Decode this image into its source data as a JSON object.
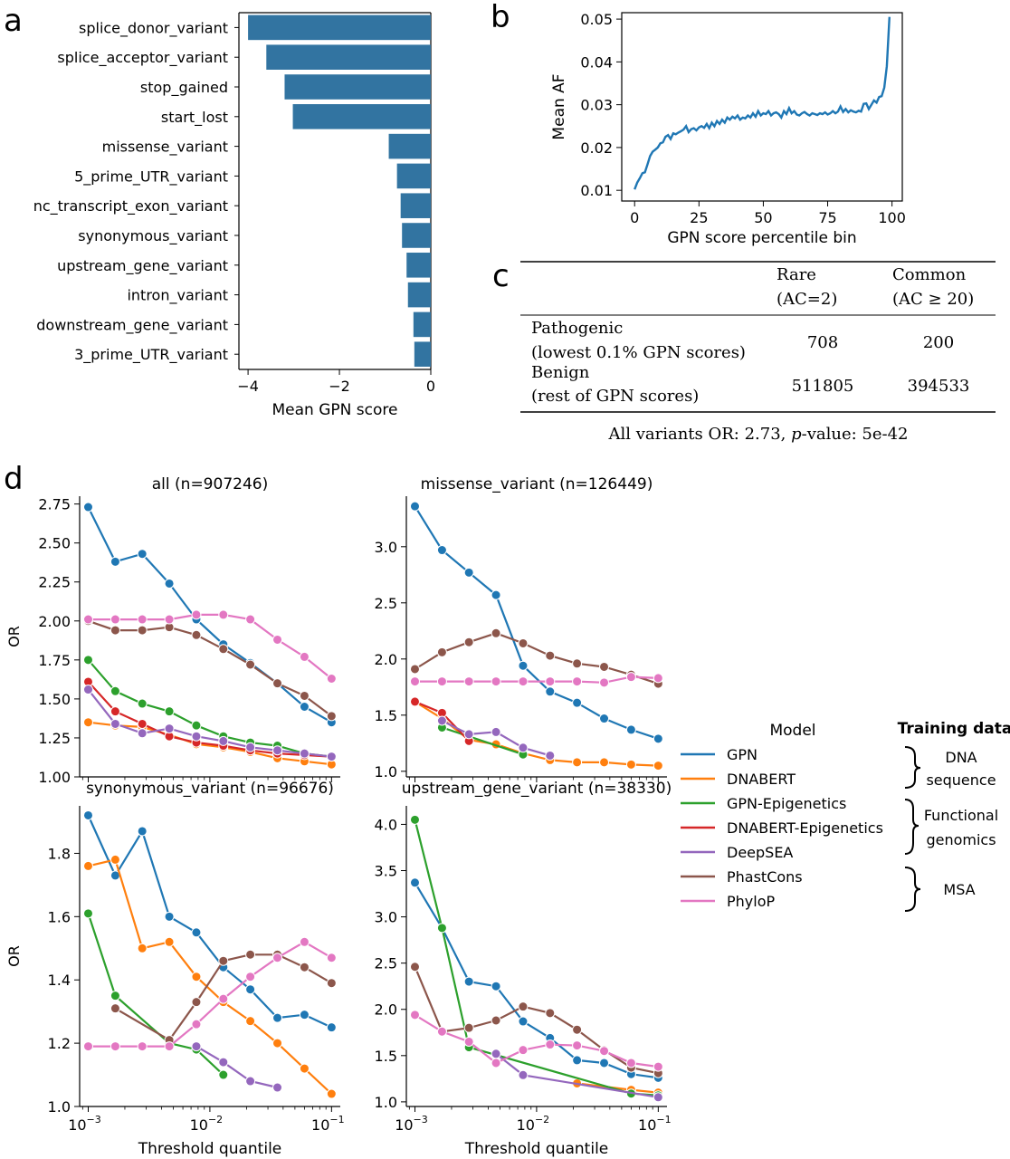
{
  "panel_labels": {
    "a": "a",
    "b": "b",
    "c": "c",
    "d": "d"
  },
  "colors": {
    "GPN": "#1f77b4",
    "DNABERT": "#ff7f0e",
    "GPN-Epigenetics": "#2ca02c",
    "DNABERT-Epigenetics": "#d62728",
    "DeepSEA": "#9467bd",
    "PhastCons": "#8c564b",
    "PhyloP": "#e377c2",
    "bar": "#3274a1"
  },
  "chart_data": [
    {
      "panel": "a",
      "type": "bar",
      "orientation": "horizontal",
      "categories": [
        "splice_donor_variant",
        "splice_acceptor_variant",
        "stop_gained",
        "start_lost",
        "missense_variant",
        "5_prime_UTR_variant",
        "nc_transcript_exon_variant",
        "synonymous_variant",
        "upstream_gene_variant",
        "intron_variant",
        "downstream_gene_variant",
        "3_prime_UTR_variant"
      ],
      "values": [
        -4.0,
        -3.6,
        -3.2,
        -3.02,
        -0.92,
        -0.74,
        -0.66,
        -0.63,
        -0.53,
        -0.5,
        -0.38,
        -0.36
      ],
      "xlabel": "Mean GPN score",
      "xlim": [
        -4.2,
        0
      ],
      "xticks": [
        -4,
        -2,
        0
      ],
      "xtick_labels": [
        "−4",
        "−2",
        "0"
      ]
    },
    {
      "panel": "b",
      "type": "line",
      "xlabel": "GPN score percentile bin",
      "ylabel": "Mean AF",
      "xlim": [
        -5,
        104
      ],
      "ylim": [
        0.0075,
        0.0515
      ],
      "xticks": [
        0,
        25,
        50,
        75,
        100
      ],
      "xtick_labels": [
        "0",
        "25",
        "50",
        "75",
        "100"
      ],
      "yticks": [
        0.01,
        0.02,
        0.03,
        0.04,
        0.05
      ],
      "ytick_labels": [
        "0.01",
        "0.02",
        "0.03",
        "0.04",
        "0.05"
      ],
      "x": [
        0,
        1,
        2,
        3,
        4,
        5,
        6,
        7,
        8,
        9,
        10,
        11,
        12,
        13,
        14,
        15,
        16,
        17,
        18,
        19,
        20,
        21,
        22,
        23,
        24,
        25,
        26,
        27,
        28,
        29,
        30,
        31,
        32,
        33,
        34,
        35,
        36,
        37,
        38,
        39,
        40,
        41,
        42,
        43,
        44,
        45,
        46,
        47,
        48,
        49,
        50,
        51,
        52,
        53,
        54,
        55,
        56,
        57,
        58,
        59,
        60,
        61,
        62,
        63,
        64,
        65,
        66,
        67,
        68,
        69,
        70,
        71,
        72,
        73,
        74,
        75,
        76,
        77,
        78,
        79,
        80,
        81,
        82,
        83,
        84,
        85,
        86,
        87,
        88,
        89,
        90,
        91,
        92,
        93,
        94,
        95,
        96,
        97,
        98,
        99
      ],
      "y": [
        0.0102,
        0.0118,
        0.0128,
        0.014,
        0.0142,
        0.016,
        0.018,
        0.019,
        0.0195,
        0.02,
        0.021,
        0.0212,
        0.0225,
        0.0229,
        0.022,
        0.0233,
        0.0231,
        0.0235,
        0.0238,
        0.0242,
        0.025,
        0.0236,
        0.0243,
        0.0245,
        0.024,
        0.0247,
        0.025,
        0.0246,
        0.0255,
        0.0245,
        0.0258,
        0.025,
        0.0262,
        0.0255,
        0.0265,
        0.0258,
        0.027,
        0.0265,
        0.0272,
        0.0268,
        0.0275,
        0.0265,
        0.027,
        0.0268,
        0.0275,
        0.027,
        0.028,
        0.0272,
        0.0285,
        0.0275,
        0.028,
        0.0278,
        0.0285,
        0.0275,
        0.028,
        0.0282,
        0.0278,
        0.027,
        0.0285,
        0.0278,
        0.0292,
        0.028,
        0.0285,
        0.0277,
        0.0275,
        0.028,
        0.0283,
        0.0278,
        0.0275,
        0.028,
        0.0278,
        0.0276,
        0.028,
        0.0278,
        0.0282,
        0.0277,
        0.028,
        0.0285,
        0.028,
        0.0284,
        0.0296,
        0.0283,
        0.029,
        0.0282,
        0.0287,
        0.0284,
        0.0282,
        0.0286,
        0.0284,
        0.0302,
        0.0303,
        0.029,
        0.03,
        0.031,
        0.0305,
        0.0318,
        0.032,
        0.034,
        0.039,
        0.0505
      ]
    },
    {
      "panel": "d1",
      "type": "line",
      "title": "all (n=907246)",
      "ylabel": "OR",
      "xscale": "log",
      "xlim": [
        0.00085,
        0.118
      ],
      "ylim": [
        1.0,
        2.8
      ],
      "yticks": [
        1.0,
        1.25,
        1.5,
        1.75,
        2.0,
        2.25,
        2.5,
        2.75
      ],
      "ytick_labels": [
        "1.00",
        "1.25",
        "1.50",
        "1.75",
        "2.00",
        "2.25",
        "2.50",
        "2.75"
      ],
      "series": [
        {
          "name": "GPN",
          "x": [
            0.001,
            0.00167,
            0.00278,
            0.00464,
            0.00774,
            0.0129,
            0.0215,
            0.0359,
            0.0599,
            0.1
          ],
          "y": [
            2.73,
            2.38,
            2.43,
            2.24,
            2.01,
            1.85,
            1.73,
            1.6,
            1.45,
            1.35
          ]
        },
        {
          "name": "DNABERT",
          "x": [
            0.001,
            0.00167,
            0.00278,
            0.00464,
            0.00774,
            0.0129,
            0.0215,
            0.0359,
            0.0599,
            0.1
          ],
          "y": [
            1.35,
            1.33,
            1.32,
            1.27,
            1.21,
            1.19,
            1.16,
            1.12,
            1.1,
            1.08
          ]
        },
        {
          "name": "GPN-Epigenetics",
          "x": [
            0.001,
            0.00167,
            0.00278,
            0.00464,
            0.00774,
            0.0129,
            0.0215,
            0.0359,
            0.0599,
            0.1
          ],
          "y": [
            1.75,
            1.55,
            1.47,
            1.42,
            1.33,
            1.26,
            1.22,
            1.2,
            1.15,
            1.13
          ]
        },
        {
          "name": "DNABERT-Epigenetics",
          "x": [
            0.001,
            0.00167,
            0.00278,
            0.00464,
            0.00774,
            0.0129,
            0.0215,
            0.0359,
            0.0599,
            0.1
          ],
          "y": [
            1.61,
            1.42,
            1.34,
            1.26,
            1.22,
            1.2,
            1.17,
            1.15,
            1.14,
            1.13
          ]
        },
        {
          "name": "DeepSEA",
          "x": [
            0.001,
            0.00167,
            0.00278,
            0.00464,
            0.00774,
            0.0129,
            0.0215,
            0.0359,
            0.0599,
            0.1
          ],
          "y": [
            1.56,
            1.34,
            1.28,
            1.31,
            1.26,
            1.23,
            1.19,
            1.17,
            1.15,
            1.13
          ]
        },
        {
          "name": "PhastCons",
          "x": [
            0.001,
            0.00167,
            0.00278,
            0.00464,
            0.00774,
            0.0129,
            0.0215,
            0.0359,
            0.0599,
            0.1
          ],
          "y": [
            2.0,
            1.94,
            1.94,
            1.96,
            1.91,
            1.82,
            1.72,
            1.6,
            1.52,
            1.39
          ]
        },
        {
          "name": "PhyloP",
          "x": [
            0.001,
            0.00167,
            0.00278,
            0.00464,
            0.00774,
            0.0129,
            0.0215,
            0.0359,
            0.0599,
            0.1
          ],
          "y": [
            2.01,
            2.01,
            2.01,
            2.01,
            2.04,
            2.04,
            2.01,
            1.88,
            1.77,
            1.63
          ]
        }
      ]
    },
    {
      "panel": "d2",
      "type": "line",
      "title": "missense_variant (n=126449)",
      "ylabel": "",
      "xscale": "log",
      "xlim": [
        0.00085,
        0.118
      ],
      "ylim": [
        0.95,
        3.45
      ],
      "yticks": [
        1.0,
        1.5,
        2.0,
        2.5,
        3.0
      ],
      "ytick_labels": [
        "1.0",
        "1.5",
        "2.0",
        "2.5",
        "3.0"
      ],
      "series": [
        {
          "name": "GPN",
          "x": [
            0.001,
            0.00167,
            0.00278,
            0.00464,
            0.00774,
            0.0129,
            0.0215,
            0.0359,
            0.0599,
            0.1
          ],
          "y": [
            3.36,
            2.97,
            2.77,
            2.57,
            1.94,
            1.71,
            1.61,
            1.47,
            1.37,
            1.29
          ]
        },
        {
          "name": "DNABERT",
          "x": [
            0.001,
            0.00167,
            0.00278,
            0.00464,
            0.00774,
            0.0129,
            0.0215,
            0.0359,
            0.0599,
            0.1
          ],
          "y": [
            1.62,
            1.47,
            1.28,
            1.24,
            1.16,
            1.1,
            1.08,
            1.08,
            1.06,
            1.05
          ]
        },
        {
          "name": "GPN-Epigenetics",
          "x": [
            0.00167,
            0.00774
          ],
          "y": [
            1.39,
            1.15
          ]
        },
        {
          "name": "DNABERT-Epigenetics",
          "x": [
            0.001,
            0.00167,
            0.00278
          ],
          "y": [
            1.62,
            1.52,
            1.27
          ]
        },
        {
          "name": "DeepSEA",
          "x": [
            0.00167,
            0.00278,
            0.00464,
            0.00774,
            0.0129
          ],
          "y": [
            1.45,
            1.33,
            1.35,
            1.21,
            1.14
          ]
        },
        {
          "name": "PhastCons",
          "x": [
            0.001,
            0.00167,
            0.00278,
            0.00464,
            0.00774,
            0.0129,
            0.0215,
            0.0359,
            0.0599,
            0.1
          ],
          "y": [
            1.91,
            2.06,
            2.15,
            2.23,
            2.14,
            2.03,
            1.96,
            1.93,
            1.86,
            1.78
          ]
        },
        {
          "name": "PhyloP",
          "x": [
            0.001,
            0.00167,
            0.00278,
            0.00464,
            0.00774,
            0.0129,
            0.0215,
            0.0359,
            0.0599,
            0.1
          ],
          "y": [
            1.8,
            1.8,
            1.8,
            1.8,
            1.8,
            1.8,
            1.8,
            1.79,
            1.84,
            1.83
          ]
        }
      ]
    },
    {
      "panel": "d3",
      "type": "line",
      "title": "synonymous_variant (n=96676)",
      "ylabel": "OR",
      "xscale": "log",
      "xlim": [
        0.00085,
        0.118
      ],
      "ylim": [
        1.0,
        1.95
      ],
      "yticks": [
        1.0,
        1.2,
        1.4,
        1.6,
        1.8
      ],
      "ytick_labels": [
        "1.0",
        "1.2",
        "1.4",
        "1.6",
        "1.8"
      ],
      "xticks": [
        0.001,
        0.01,
        0.1
      ],
      "xlabel": "Threshold quantile",
      "series": [
        {
          "name": "GPN",
          "x": [
            0.001,
            0.00167,
            0.00278,
            0.00464,
            0.00774,
            0.0129,
            0.0215,
            0.0359,
            0.0599,
            0.1
          ],
          "y": [
            1.92,
            1.73,
            1.87,
            1.6,
            1.55,
            1.44,
            1.37,
            1.28,
            1.29,
            1.25
          ]
        },
        {
          "name": "DNABERT",
          "x": [
            0.001,
            0.00167,
            0.00278,
            0.00464,
            0.00774,
            0.0129,
            0.0215,
            0.0359,
            0.0599,
            0.1
          ],
          "y": [
            1.76,
            1.78,
            1.5,
            1.52,
            1.41,
            1.33,
            1.27,
            1.2,
            1.12,
            1.04
          ]
        },
        {
          "name": "GPN-Epigenetics",
          "x": [
            0.001,
            0.00167,
            0.00464,
            0.00774,
            0.0129
          ],
          "y": [
            1.61,
            1.35,
            1.2,
            1.18,
            1.1
          ]
        },
        {
          "name": "DNABERT-Epigenetics",
          "x": [
            0.0359
          ],
          "y": [
            1.06
          ]
        },
        {
          "name": "DeepSEA",
          "x": [
            0.00774,
            0.0129,
            0.0215,
            0.0359
          ],
          "y": [
            1.19,
            1.14,
            1.08,
            1.06
          ]
        },
        {
          "name": "PhastCons",
          "x": [
            0.00167,
            0.00464,
            0.00774,
            0.0129,
            0.0215,
            0.0359,
            0.0599,
            0.1
          ],
          "y": [
            1.31,
            1.21,
            1.33,
            1.46,
            1.48,
            1.48,
            1.44,
            1.39
          ]
        },
        {
          "name": "PhyloP",
          "x": [
            0.001,
            0.00167,
            0.00278,
            0.00464,
            0.00774,
            0.0129,
            0.0215,
            0.0359,
            0.0599,
            0.1
          ],
          "y": [
            1.19,
            1.19,
            1.19,
            1.19,
            1.26,
            1.34,
            1.41,
            1.47,
            1.52,
            1.47
          ]
        }
      ]
    },
    {
      "panel": "d4",
      "type": "line",
      "title": "upstream_gene_variant (n=38330)",
      "ylabel": "",
      "xscale": "log",
      "xlim": [
        0.00085,
        0.118
      ],
      "ylim": [
        0.95,
        4.2
      ],
      "yticks": [
        1.0,
        1.5,
        2.0,
        2.5,
        3.0,
        3.5,
        4.0
      ],
      "ytick_labels": [
        "1.0",
        "1.5",
        "2.0",
        "2.5",
        "3.0",
        "3.5",
        "4.0"
      ],
      "xticks": [
        0.001,
        0.01,
        0.1
      ],
      "xlabel": "Threshold quantile",
      "series": [
        {
          "name": "GPN",
          "x": [
            0.001,
            0.00167,
            0.00278,
            0.00464,
            0.00774,
            0.0129,
            0.0215,
            0.0359,
            0.0599,
            0.1
          ],
          "y": [
            3.37,
            2.88,
            2.3,
            2.25,
            1.87,
            1.69,
            1.45,
            1.42,
            1.3,
            1.26
          ]
        },
        {
          "name": "DNABERT",
          "x": [
            0.0215,
            0.0599,
            0.1
          ],
          "y": [
            1.2,
            1.13,
            1.1
          ]
        },
        {
          "name": "GPN-Epigenetics",
          "x": [
            0.001,
            0.00167,
            0.00278,
            0.0599,
            0.1
          ],
          "y": [
            4.05,
            2.88,
            1.59,
            1.09,
            1.07
          ]
        },
        {
          "name": "DeepSEA",
          "x": [
            0.00464,
            0.00774,
            0.1
          ],
          "y": [
            1.52,
            1.29,
            1.05
          ]
        },
        {
          "name": "PhastCons",
          "x": [
            0.001,
            0.00167,
            0.00278,
            0.00464,
            0.00774,
            0.0129,
            0.0215,
            0.0359,
            0.0599,
            0.1
          ],
          "y": [
            2.46,
            1.76,
            1.8,
            1.88,
            2.03,
            1.96,
            1.78,
            1.56,
            1.37,
            1.31
          ]
        },
        {
          "name": "PhyloP",
          "x": [
            0.001,
            0.00167,
            0.00278,
            0.00464,
            0.00774,
            0.0129,
            0.0215,
            0.0359,
            0.0599,
            0.1
          ],
          "y": [
            1.94,
            1.76,
            1.65,
            1.42,
            1.56,
            1.62,
            1.61,
            1.55,
            1.42,
            1.38
          ]
        }
      ]
    }
  ],
  "log_tick_labels": {
    "base": "10",
    "exps": [
      "−3",
      "−2",
      "−1"
    ]
  },
  "table_c": {
    "headers": [
      {
        "line1": "Rare",
        "line2": "(AC=2)"
      },
      {
        "line1": "Common",
        "line2": "(AC ≥ 20)"
      }
    ],
    "rows": [
      {
        "line1": "Pathogenic",
        "line2": "(lowest 0.1% GPN scores)",
        "rare": "708",
        "common": "200"
      },
      {
        "line1": "Benign",
        "line2": "(rest of GPN scores)",
        "rare": "511805",
        "common": "394533"
      }
    ],
    "footer_prefix": "All variants OR: 2.73, ",
    "footer_p": "p",
    "footer_suffix": "-value: 5e-42"
  },
  "legend": {
    "title": "Model",
    "items": [
      "GPN",
      "DNABERT",
      "GPN-Epigenetics",
      "DNABERT-Epigenetics",
      "DeepSEA",
      "PhastCons",
      "PhyloP"
    ],
    "training_title": "Training data",
    "groups": [
      {
        "line1": "DNA",
        "line2": "sequence"
      },
      {
        "line1": "Functional",
        "line2": "genomics"
      },
      {
        "line1": "MSA",
        "line2": ""
      }
    ]
  }
}
